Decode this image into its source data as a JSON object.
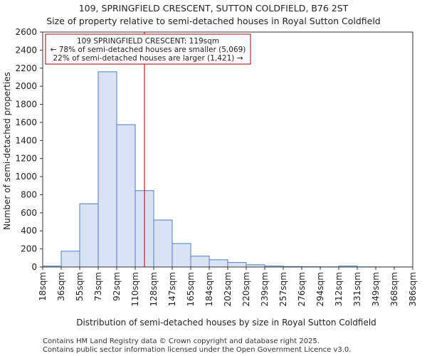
{
  "chart_data": {
    "type": "bar",
    "title_lines": [
      "109, SPRINGFIELD CRESCENT, SUTTON COLDFIELD, B76 2ST",
      "Size of property relative to semi-detached houses in Royal Sutton Coldfield"
    ],
    "xlabel": "Distribution of semi-detached houses by size in Royal Sutton Coldfield",
    "ylabel": "Number of semi-detached properties",
    "ylim": [
      0,
      2600
    ],
    "yticks": [
      0,
      200,
      400,
      600,
      800,
      1000,
      1200,
      1400,
      1600,
      1800,
      2000,
      2200,
      2400,
      2600
    ],
    "bin_edges": [
      "18sqm",
      "36sqm",
      "55sqm",
      "73sqm",
      "92sqm",
      "110sqm",
      "128sqm",
      "147sqm",
      "165sqm",
      "184sqm",
      "202sqm",
      "220sqm",
      "239sqm",
      "257sqm",
      "276sqm",
      "294sqm",
      "312sqm",
      "331sqm",
      "349sqm",
      "368sqm",
      "386sqm"
    ],
    "bin_edge_values": [
      18,
      36,
      55,
      73,
      92,
      110,
      128,
      147,
      165,
      184,
      202,
      220,
      239,
      257,
      276,
      294,
      312,
      331,
      349,
      368,
      386
    ],
    "values": [
      10,
      175,
      700,
      2160,
      1575,
      845,
      520,
      260,
      120,
      80,
      50,
      25,
      10,
      5,
      3,
      2,
      10,
      2,
      1,
      1
    ],
    "property_marker": {
      "value": 119,
      "color": "#aa0000"
    },
    "annotation_lines": [
      "109 SPRINGFIELD CRESCENT: 119sqm",
      "← 78% of semi-detached houses are smaller (5,069)",
      "22% of semi-detached houses are larger (1,421) →"
    ],
    "bar_fill": "#dae3f3",
    "bar_stroke": "#4f7bc4",
    "footer_lines": [
      "Contains HM Land Registry data © Crown copyright and database right 2025.",
      "Contains public sector information licensed under the Open Government Licence v3.0."
    ]
  }
}
